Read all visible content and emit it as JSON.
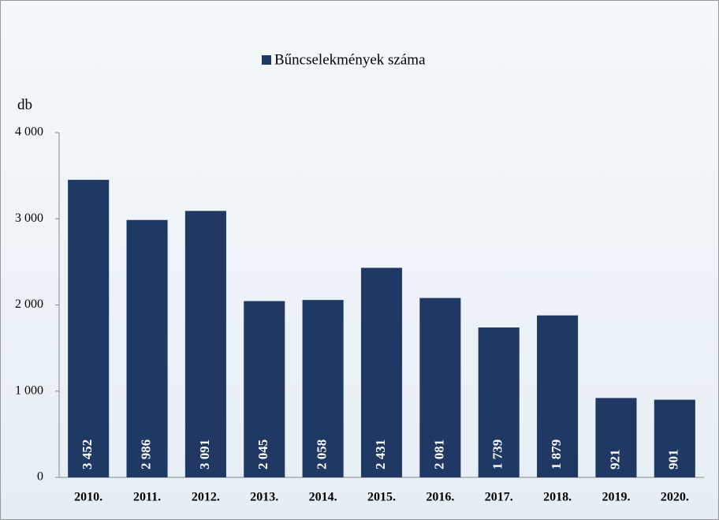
{
  "chart_data": {
    "type": "bar",
    "legend_label": "Bűncselekmények száma",
    "y_axis_label": "db",
    "categories": [
      "2010.",
      "2011.",
      "2012.",
      "2013.",
      "2014.",
      "2015.",
      "2016.",
      "2017.",
      "2018.",
      "2019.",
      "2020."
    ],
    "series": [
      {
        "name": "Bűncselekmények száma",
        "color": "#1f3864",
        "values": [
          3452,
          2986,
          3091,
          2045,
          2058,
          2431,
          2081,
          1739,
          1879,
          921,
          901
        ],
        "value_labels": [
          "3 452",
          "2 986",
          "3 091",
          "2 045",
          "2 058",
          "2 431",
          "2 081",
          "1 739",
          "1 879",
          "921",
          "901"
        ]
      }
    ],
    "ylim": [
      0,
      4000
    ],
    "yticks": [
      0,
      {
        "value": 1000,
        "label": "1 000"
      },
      {
        "value": 2000,
        "label": "2 000"
      },
      {
        "value": 3000,
        "label": "3 000"
      },
      {
        "value": 4000,
        "label": "4 000"
      }
    ],
    "grid": false
  }
}
